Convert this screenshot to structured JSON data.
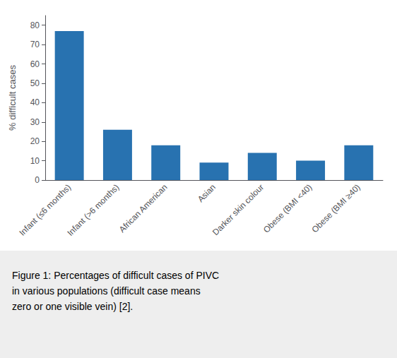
{
  "chart_data": {
    "type": "bar",
    "categories": [
      "Infant (≤6 months)",
      "Infant (>6 months)",
      "African American",
      "Asian",
      "Darker skin colour",
      "Obese (BMI <40)",
      "Obese (BMI ≥40)"
    ],
    "values": [
      77,
      26,
      18,
      9,
      14,
      10,
      18
    ],
    "color": "#2872b0",
    "ylabel": "% difficult cases",
    "ylim": [
      0,
      85
    ],
    "yticks": [
      0,
      10,
      20,
      30,
      40,
      50,
      60,
      70,
      80
    ],
    "grid": false,
    "caption": "Figure 1: Percentages of difficult cases of PIVC\nin various populations (difficult case means\nzero or one visible vein) [2]."
  }
}
